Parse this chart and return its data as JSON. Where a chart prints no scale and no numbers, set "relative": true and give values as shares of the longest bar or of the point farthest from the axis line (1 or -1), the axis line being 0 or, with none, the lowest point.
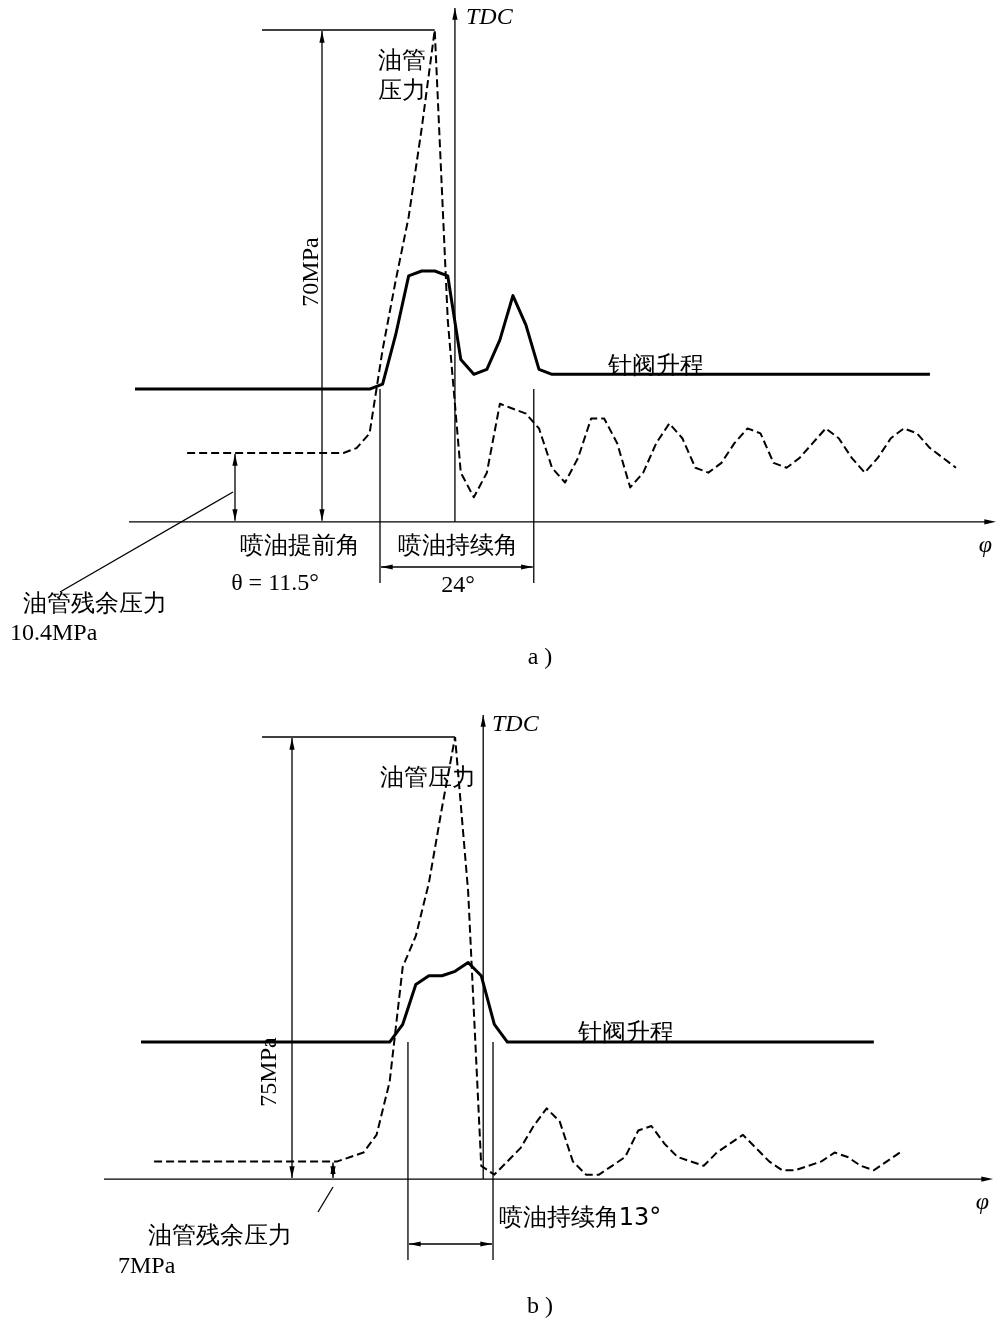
{
  "chart_data": [
    {
      "type": "line",
      "xlabel": "φ",
      "relative": true,
      "marker": "none",
      "categories": [
        null,
        null,
        null,
        null,
        null,
        null,
        null,
        null,
        null,
        null,
        null,
        null,
        null,
        null,
        null,
        null,
        null,
        null,
        null,
        null,
        null,
        null,
        null,
        null,
        null,
        null,
        null,
        null,
        null,
        null,
        null,
        null,
        null,
        null,
        null,
        null,
        null,
        null,
        null,
        null,
        null,
        null,
        null,
        null,
        null,
        null,
        null,
        null,
        null,
        null,
        null,
        null,
        null,
        null,
        null,
        null,
        null,
        null,
        null,
        null,
        null,
        null,
        null,
        null
      ],
      "series": [
        {
          "name": "油管压力",
          "color": "#000000",
          "line_style": "dashed",
          "values": [
            null,
            null,
            null,
            null,
            0.14,
            0.14,
            0.14,
            0.14,
            0.14,
            0.14,
            0.14,
            0.14,
            0.14,
            0.14,
            0.14,
            0.14,
            0.14,
            0.15,
            0.18,
            0.35,
            0.49,
            0.62,
            0.8,
            1.0,
            0.41,
            0.1,
            0.05,
            0.1,
            0.24,
            0.23,
            0.22,
            0.19,
            0.11,
            0.08,
            0.13,
            0.21,
            0.21,
            0.16,
            0.07,
            0.1,
            0.16,
            0.2,
            0.17,
            0.11,
            0.1,
            0.12,
            0.16,
            0.19,
            0.18,
            0.12,
            0.11,
            0.13,
            0.16,
            0.19,
            0.17,
            0.13,
            0.1,
            0.13,
            0.17,
            0.19,
            0.18,
            0.15,
            0.13,
            0.11
          ]
        },
        {
          "name": "针阀升程",
          "color": "#000000",
          "line_style": "solid",
          "values": [
            0.27,
            0.27,
            0.27,
            0.27,
            0.27,
            0.27,
            0.27,
            0.27,
            0.27,
            0.27,
            0.27,
            0.27,
            0.27,
            0.27,
            0.27,
            0.27,
            0.27,
            0.27,
            0.27,
            0.28,
            0.38,
            0.5,
            0.51,
            0.51,
            0.5,
            0.33,
            0.3,
            0.31,
            0.37,
            0.46,
            0.4,
            0.31,
            0.3,
            0.3,
            0.3,
            0.3,
            0.3,
            0.3,
            0.3,
            0.3,
            0.3,
            0.3,
            0.3,
            0.3,
            0.3,
            0.3,
            0.3,
            0.3,
            0.3,
            0.3,
            0.3,
            0.3,
            0.3,
            0.3,
            0.3,
            0.3,
            0.3,
            0.3,
            0.3,
            0.3,
            0.3,
            0.3,
            null,
            null
          ]
        }
      ],
      "annotations": [
        "TDC",
        "70MPa",
        "喷油提前角",
        "θ = 11.5°",
        "喷油持续角",
        "24°",
        "油管残余压力",
        "10.4MPa",
        "a )"
      ]
    },
    {
      "type": "line",
      "xlabel": "φ",
      "relative": true,
      "marker": "none",
      "categories": [
        null,
        null,
        null,
        null,
        null,
        null,
        null,
        null,
        null,
        null,
        null,
        null,
        null,
        null,
        null,
        null,
        null,
        null,
        null,
        null,
        null,
        null,
        null,
        null,
        null,
        null,
        null,
        null,
        null,
        null,
        null,
        null,
        null,
        null,
        null,
        null,
        null,
        null,
        null,
        null,
        null,
        null,
        null,
        null,
        null,
        null,
        null,
        null,
        null,
        null,
        null,
        null,
        null,
        null,
        null,
        null,
        null,
        null,
        null
      ],
      "series": [
        {
          "name": "油管压力",
          "color": "#000000",
          "line_style": "dashed",
          "values": [
            null,
            0.04,
            0.04,
            0.04,
            0.04,
            0.04,
            0.04,
            0.04,
            0.04,
            0.04,
            0.04,
            0.04,
            0.04,
            0.04,
            0.04,
            0.04,
            0.05,
            0.06,
            0.1,
            0.22,
            0.48,
            0.55,
            0.67,
            0.84,
            1.0,
            0.65,
            0.03,
            0.01,
            0.04,
            0.07,
            0.12,
            0.16,
            0.13,
            0.04,
            0.01,
            0.01,
            0.03,
            0.05,
            0.11,
            0.12,
            0.08,
            0.05,
            0.04,
            0.03,
            0.06,
            0.08,
            0.1,
            0.07,
            0.04,
            0.02,
            0.02,
            0.03,
            0.04,
            0.06,
            0.05,
            0.03,
            0.02,
            0.04,
            0.06
          ]
        },
        {
          "name": "针阀升程",
          "color": "#000000",
          "line_style": "solid",
          "values": [
            0.31,
            0.31,
            0.31,
            0.31,
            0.31,
            0.31,
            0.31,
            0.31,
            0.31,
            0.31,
            0.31,
            0.31,
            0.31,
            0.31,
            0.31,
            0.31,
            0.31,
            0.31,
            0.31,
            0.31,
            0.35,
            0.44,
            0.46,
            0.46,
            0.47,
            0.49,
            0.46,
            0.35,
            0.31,
            0.31,
            0.31,
            0.31,
            0.31,
            0.31,
            0.31,
            0.31,
            0.31,
            0.31,
            0.31,
            0.31,
            0.31,
            0.31,
            0.31,
            0.31,
            0.31,
            0.31,
            0.31,
            0.31,
            0.31,
            0.31,
            0.31,
            0.31,
            0.31,
            0.31,
            0.31,
            0.31,
            0.31,
            null,
            null
          ]
        }
      ],
      "annotations": [
        "TDC",
        "75MPa",
        "油管残余压力",
        "7MPa",
        "喷油持续角13°",
        "b )"
      ]
    }
  ]
}
